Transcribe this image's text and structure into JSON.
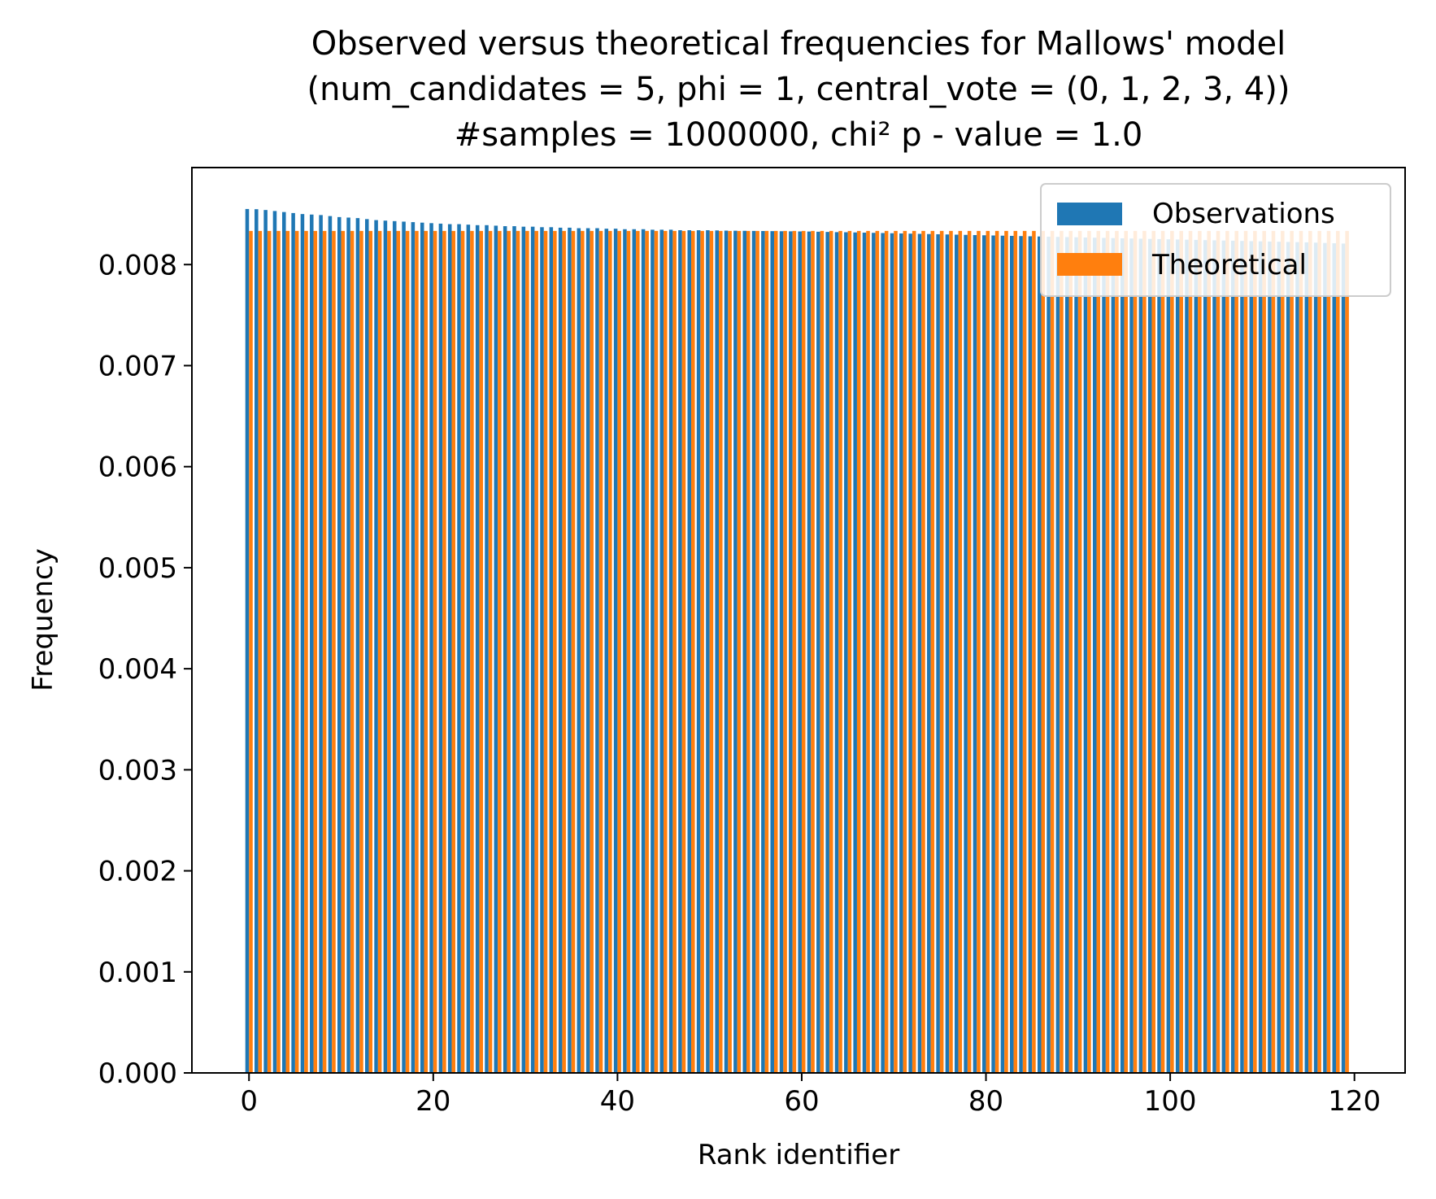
{
  "chart_data": {
    "type": "bar",
    "title": [
      "Observed versus theoretical frequencies for Mallows' model",
      "(num_candidates = 5, phi = 1, central_vote = (0, 1, 2, 3, 4))",
      "#samples = 1000000, chi² p - value = 1.0"
    ],
    "xlabel": "Rank identifier",
    "ylabel": "Frequency",
    "xlim": [
      -6.2,
      125.5
    ],
    "ylim": [
      0,
      0.00896
    ],
    "xticks": [
      0,
      20,
      40,
      60,
      80,
      100,
      120
    ],
    "xtick_labels": [
      "0",
      "20",
      "40",
      "60",
      "80",
      "100",
      "120"
    ],
    "yticks": [
      0,
      0.001,
      0.002,
      0.003,
      0.004,
      0.005,
      0.006,
      0.007,
      0.008
    ],
    "ytick_labels": [
      "0.000",
      "0.001",
      "0.002",
      "0.003",
      "0.004",
      "0.005",
      "0.006",
      "0.007",
      "0.008"
    ],
    "legend": {
      "position": "top-right"
    },
    "series": [
      {
        "name": "Observations",
        "color": "#1f77b4",
        "x_start": 0,
        "count": 120,
        "values": [
          0.00855,
          0.008548,
          0.00854,
          0.00853,
          0.00852,
          0.00851,
          0.0085,
          0.008495,
          0.00849,
          0.00848,
          0.00847,
          0.008465,
          0.00846,
          0.00845,
          0.00844,
          0.008435,
          0.00843,
          0.008425,
          0.00842,
          0.008415,
          0.00841,
          0.008405,
          0.0084,
          0.0084,
          0.008395,
          0.00839,
          0.00839,
          0.008385,
          0.00838,
          0.00838,
          0.008375,
          0.008375,
          0.00837,
          0.00837,
          0.008365,
          0.008365,
          0.00836,
          0.00836,
          0.00836,
          0.008355,
          0.008355,
          0.00835,
          0.00835,
          0.00835,
          0.008345,
          0.008345,
          0.008345,
          0.00834,
          0.00834,
          0.00834,
          0.00834,
          0.008338,
          0.008336,
          0.008335,
          0.008334,
          0.008333,
          0.008332,
          0.008331,
          0.00833,
          0.008329,
          0.008328,
          0.008327,
          0.008325,
          0.008323,
          0.008321,
          0.00832,
          0.008318,
          0.008316,
          0.008314,
          0.008312,
          0.00831,
          0.008308,
          0.008306,
          0.008304,
          0.008302,
          0.0083,
          0.008298,
          0.008296,
          0.008294,
          0.008292,
          0.00829,
          0.008288,
          0.008286,
          0.008284,
          0.008282,
          0.00828,
          0.008278,
          0.008276,
          0.008274,
          0.008272,
          0.00827,
          0.008268,
          0.008266,
          0.008264,
          0.008262,
          0.00826,
          0.008258,
          0.008256,
          0.008254,
          0.008252,
          0.00825,
          0.008248,
          0.008246,
          0.008244,
          0.008242,
          0.00824,
          0.008238,
          0.008236,
          0.008234,
          0.008232,
          0.00823,
          0.008228,
          0.008226,
          0.008224,
          0.008222,
          0.00822,
          0.008217,
          0.008214,
          0.008211,
          0.008208
        ]
      },
      {
        "name": "Theoretical",
        "color": "#ff7f0e",
        "x_start": 0,
        "count": 120,
        "constant_value": 0.008333
      }
    ]
  }
}
